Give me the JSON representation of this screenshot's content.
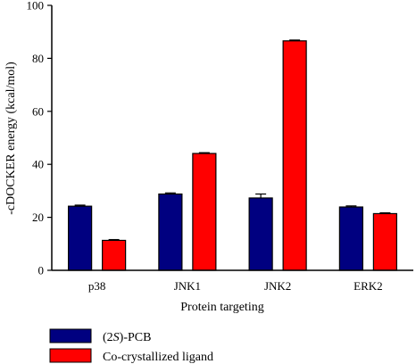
{
  "chart_data": {
    "type": "bar",
    "title": "",
    "xlabel": "Protein targeting",
    "ylabel": "-cDOCKER energy (kcal/mol)",
    "ylim": [
      0,
      100
    ],
    "yticks": [
      0,
      20,
      40,
      60,
      80,
      100
    ],
    "categories": [
      "p38",
      "JNK1",
      "JNK2",
      "ERK2"
    ],
    "grid": false,
    "legend_position": "bottom-left",
    "series": [
      {
        "name_prefix": "(2",
        "name_italic": "S",
        "name_suffix": ")-PCB",
        "color": "#000080",
        "values": [
          24.2,
          28.8,
          27.3,
          23.9
        ],
        "errors": [
          0.4,
          0.4,
          1.5,
          0.4
        ]
      },
      {
        "name": "Co-crystallized ligand",
        "color": "#ff0000",
        "values": [
          11.3,
          44.1,
          86.6,
          21.4
        ],
        "errors": [
          0.3,
          0.3,
          0.3,
          0.3
        ]
      }
    ]
  }
}
